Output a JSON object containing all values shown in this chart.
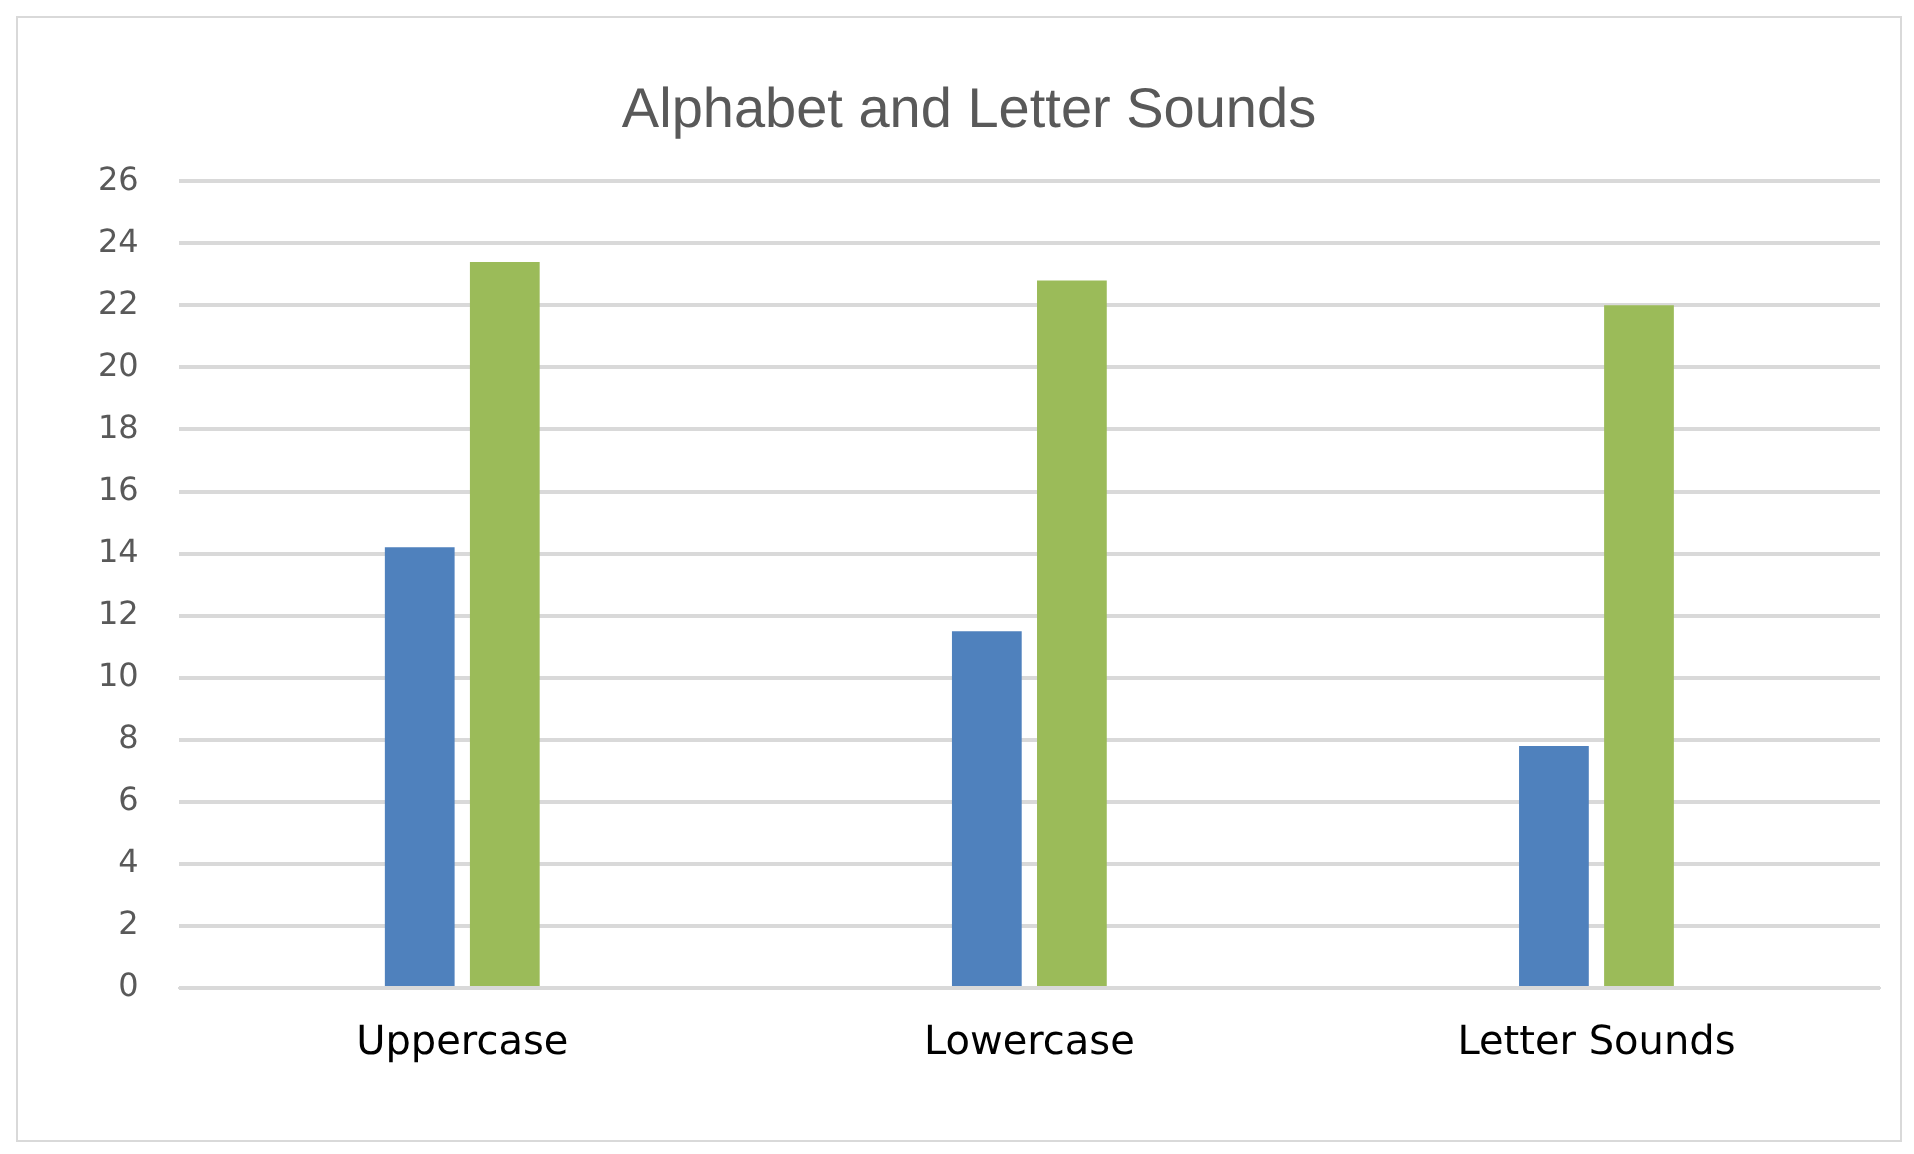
{
  "chart_data": {
    "type": "bar",
    "title": "Alphabet and Letter Sounds",
    "categories": [
      "Uppercase",
      "Lowercase",
      "Letter Sounds"
    ],
    "series": [
      {
        "color": "#4f81bd",
        "values": [
          14.2,
          11.5,
          7.8
        ]
      },
      {
        "color": "#9bbb59",
        "values": [
          23.4,
          22.8,
          22.0
        ]
      }
    ],
    "ylim": [
      0,
      26
    ],
    "yticks": [
      0,
      2,
      4,
      6,
      8,
      10,
      12,
      14,
      16,
      18,
      20,
      22,
      24,
      26
    ],
    "grid": "y"
  }
}
